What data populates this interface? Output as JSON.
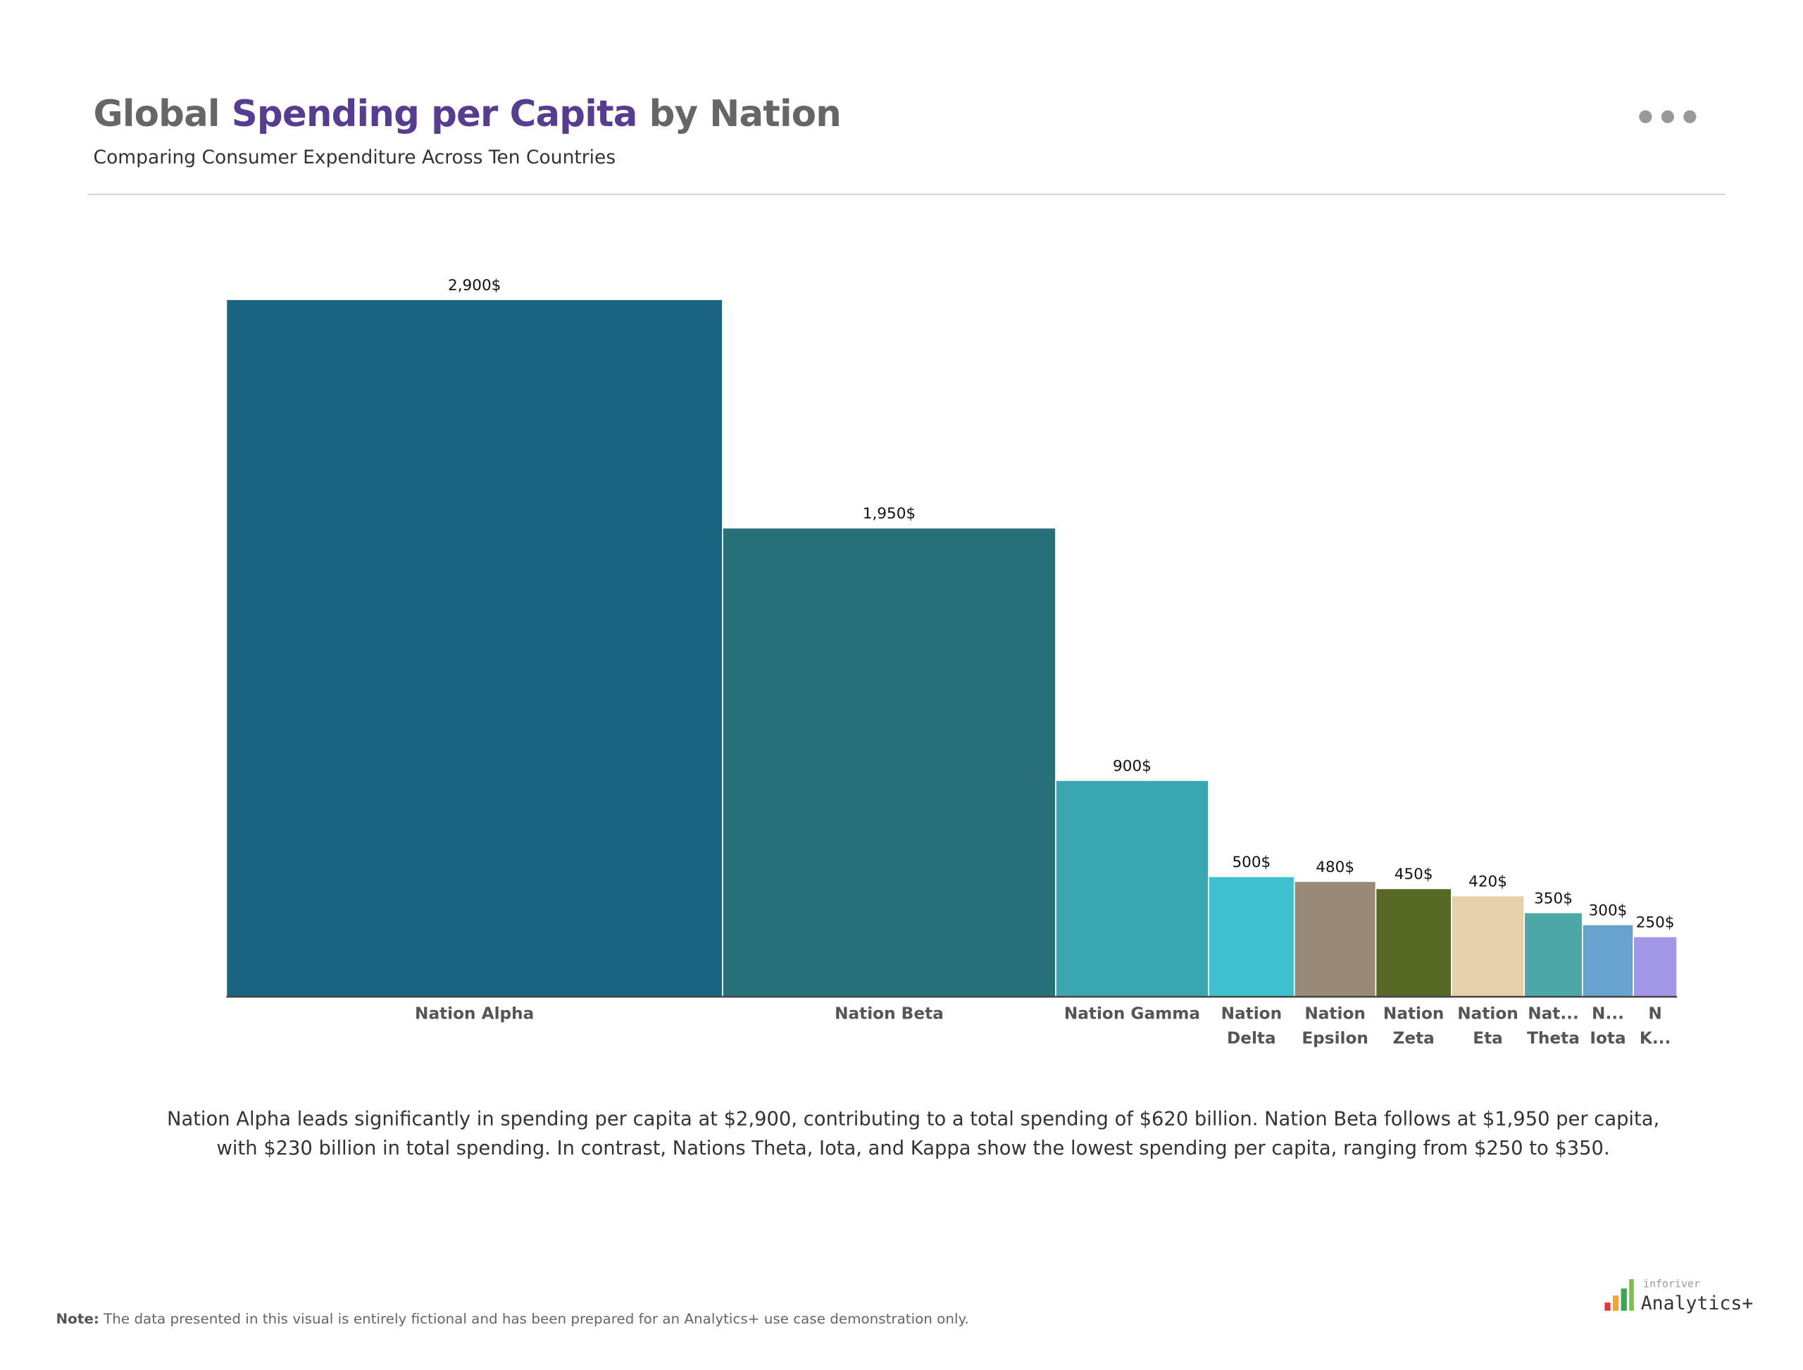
{
  "chart_data": {
    "type": "variable-width-bar",
    "title": [
      "Global",
      "Spending per Capita",
      "by Nation"
    ],
    "subtitle": "Comparing Consumer Expenditure Across Ten Countries",
    "categories": [
      "Nation Alpha",
      "Nation Beta",
      "Nation Gamma",
      "Nation Delta",
      "Nation Epsilon",
      "Nation Zeta",
      "Nation Eta",
      "Nat... Theta",
      "N... Iota",
      "N K..."
    ],
    "values": [
      2900,
      1950,
      900,
      500,
      480,
      450,
      420,
      350,
      300,
      250
    ],
    "value_labels": [
      "2,900$",
      "1,950$",
      "900$",
      "500$",
      "480$",
      "450$",
      "420$",
      "350$",
      "300$",
      "250$"
    ],
    "widths": [
      34.1,
      22.9,
      10.5,
      5.9,
      5.6,
      5.2,
      5.0,
      4.0,
      3.5,
      3.0
    ],
    "colors": [
      "#1a6482",
      "#267078",
      "#3aa6b0",
      "#40c1cf",
      "#9a8b78",
      "#566823",
      "#e6d0ab",
      "#4fa8a8",
      "#67a3cc",
      "#a397e8"
    ],
    "ylim": [
      0,
      3000
    ],
    "description": "Nation Alpha leads significantly in spending per capita at $2,900, contributing to a total spending of $620 billion. Nation Beta follows at $1,950 per capita, with $230 billion in total spending. In contrast, Nations Theta, Iota, and Kappa show the lowest spending per capita, ranging from $250 to $350.",
    "note_label": "Note:",
    "note": "The data presented in this visual is entirely fictional and has been prepared for an Analytics+ use case demonstration only.",
    "logo": [
      "inforiver",
      "Analytics+"
    ]
  }
}
